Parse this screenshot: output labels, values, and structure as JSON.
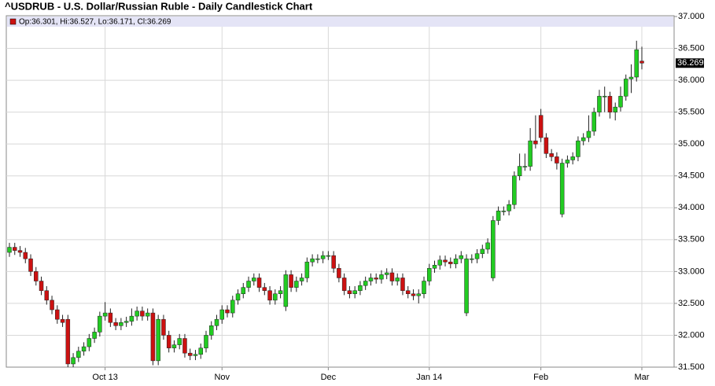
{
  "chart_data": {
    "type": "candlestick",
    "title": "^USDRUB - U.S. Dollar/Russian Ruble - Daily Candlestick Chart",
    "legend": "Op:36.301, Hi:36.527, Lo:36.171, Cl:36.269",
    "up_color": "#22cc22",
    "down_color": "#cc1111",
    "grid": true,
    "ylim": [
      31.5,
      37.0
    ],
    "yticks": [
      {
        "value": 31.5,
        "label": "31.500"
      },
      {
        "value": 32.0,
        "label": "32.000"
      },
      {
        "value": 32.5,
        "label": "32.500"
      },
      {
        "value": 33.0,
        "label": "33.000"
      },
      {
        "value": 33.5,
        "label": "33.500"
      },
      {
        "value": 34.0,
        "label": "34.000"
      },
      {
        "value": 34.5,
        "label": "34.500"
      },
      {
        "value": 35.0,
        "label": "35.000"
      },
      {
        "value": 35.5,
        "label": "35.500"
      },
      {
        "value": 36.0,
        "label": "36.000"
      },
      {
        "value": 36.5,
        "label": "36.500"
      },
      {
        "value": 37.0,
        "label": "37.000"
      }
    ],
    "categories": [
      null,
      null,
      null,
      null,
      null,
      null,
      null,
      null,
      null,
      null,
      null,
      null,
      null,
      null,
      null,
      null,
      null,
      null,
      "Oct 13",
      null,
      null,
      null,
      null,
      null,
      null,
      null,
      null,
      null,
      null,
      null,
      null,
      null,
      null,
      null,
      null,
      null,
      null,
      null,
      null,
      null,
      "Nov",
      null,
      null,
      null,
      null,
      null,
      null,
      null,
      null,
      null,
      null,
      null,
      null,
      null,
      null,
      null,
      null,
      null,
      null,
      null,
      "Dec",
      null,
      null,
      null,
      null,
      null,
      null,
      null,
      null,
      null,
      null,
      null,
      null,
      null,
      null,
      null,
      null,
      null,
      null,
      "Jan 14",
      null,
      null,
      null,
      null,
      null,
      null,
      null,
      null,
      null,
      null,
      null,
      null,
      null,
      null,
      null,
      null,
      null,
      null,
      null,
      null,
      "Feb",
      null,
      null,
      null,
      null,
      null,
      null,
      null,
      null,
      null,
      null,
      null,
      null,
      null,
      null,
      null,
      null,
      null,
      null,
      "Mar"
    ],
    "open": [
      33.3,
      33.38,
      33.33,
      33.3,
      33.2,
      33.0,
      32.85,
      32.7,
      32.55,
      32.4,
      32.25,
      32.25,
      31.55,
      31.65,
      31.75,
      31.82,
      31.95,
      32.05,
      32.3,
      32.35,
      32.2,
      32.15,
      32.2,
      32.22,
      32.3,
      32.38,
      32.3,
      32.35,
      31.6,
      32.25,
      32.0,
      31.8,
      31.85,
      31.95,
      31.72,
      31.68,
      31.7,
      31.8,
      32.0,
      32.15,
      32.25,
      32.4,
      32.35,
      32.55,
      32.65,
      32.75,
      32.85,
      32.9,
      32.75,
      32.7,
      32.55,
      32.65,
      32.45,
      32.95,
      32.75,
      32.85,
      32.9,
      33.15,
      33.2,
      33.2,
      33.25,
      33.25,
      33.05,
      32.9,
      32.7,
      32.65,
      32.7,
      32.78,
      32.85,
      32.9,
      32.88,
      32.95,
      32.98,
      32.85,
      32.9,
      32.7,
      32.65,
      32.62,
      32.65,
      32.85,
      33.05,
      33.1,
      33.18,
      33.15,
      33.12,
      33.2,
      32.35,
      33.2,
      33.2,
      33.28,
      33.35,
      32.9,
      33.8,
      33.95,
      33.95,
      34.05,
      34.5,
      34.65,
      34.65,
      35.05,
      35.45,
      35.1,
      34.85,
      34.8,
      33.9,
      34.7,
      34.75,
      34.8,
      35.05,
      35.1,
      35.2,
      35.5,
      35.75,
      35.75,
      35.5,
      35.58,
      35.75,
      36.02,
      36.05,
      36.301
    ],
    "high": [
      33.45,
      33.45,
      33.4,
      33.37,
      33.27,
      33.07,
      32.92,
      32.77,
      32.62,
      32.47,
      32.32,
      32.32,
      31.72,
      31.82,
      31.89,
      32.02,
      32.12,
      32.37,
      32.52,
      32.42,
      32.27,
      32.27,
      32.29,
      32.42,
      32.45,
      32.45,
      32.42,
      32.42,
      32.32,
      32.32,
      32.07,
      31.92,
      32.02,
      32.02,
      31.79,
      31.77,
      31.87,
      32.07,
      32.22,
      32.32,
      32.47,
      32.47,
      32.62,
      32.72,
      32.82,
      32.92,
      32.97,
      32.97,
      32.82,
      32.77,
      32.72,
      32.77,
      33.02,
      33.02,
      32.92,
      32.97,
      33.22,
      33.27,
      33.27,
      33.32,
      33.32,
      33.32,
      33.12,
      32.97,
      32.77,
      32.77,
      32.85,
      32.92,
      32.97,
      32.97,
      33.02,
      33.05,
      33.05,
      32.97,
      32.97,
      32.77,
      32.72,
      32.72,
      32.92,
      33.12,
      33.17,
      33.25,
      33.25,
      33.22,
      33.27,
      33.32,
      33.27,
      33.27,
      33.35,
      33.42,
      33.52,
      33.87,
      34.02,
      34.02,
      34.12,
      34.57,
      34.85,
      34.85,
      35.25,
      35.45,
      35.55,
      35.17,
      34.92,
      34.87,
      34.77,
      34.82,
      34.87,
      35.12,
      35.17,
      35.45,
      35.57,
      35.85,
      35.9,
      35.82,
      35.65,
      35.9,
      36.09,
      36.25,
      36.62,
      36.527
    ],
    "low": [
      33.23,
      33.26,
      33.23,
      33.13,
      32.93,
      32.78,
      32.63,
      32.48,
      32.33,
      32.18,
      32.13,
      31.5,
      31.5,
      31.58,
      31.68,
      31.75,
      31.88,
      31.98,
      32.23,
      32.13,
      32.08,
      32.08,
      32.13,
      32.15,
      32.23,
      32.23,
      32.23,
      31.53,
      31.53,
      31.93,
      31.73,
      31.73,
      31.78,
      31.65,
      31.61,
      31.61,
      31.63,
      31.73,
      31.93,
      32.08,
      32.18,
      32.28,
      32.28,
      32.48,
      32.58,
      32.68,
      32.78,
      32.68,
      32.63,
      32.48,
      32.48,
      32.58,
      32.38,
      32.68,
      32.68,
      32.78,
      32.83,
      33.08,
      33.13,
      33.13,
      33.18,
      32.98,
      32.83,
      32.63,
      32.58,
      32.58,
      32.63,
      32.71,
      32.78,
      32.81,
      32.81,
      32.88,
      32.78,
      32.78,
      32.63,
      32.58,
      32.55,
      32.5,
      32.58,
      32.78,
      32.98,
      33.03,
      33.08,
      33.05,
      33.05,
      33.13,
      32.3,
      33.13,
      33.13,
      33.21,
      33.28,
      32.85,
      33.73,
      33.88,
      33.88,
      33.98,
      34.43,
      34.58,
      34.58,
      34.93,
      35.03,
      34.78,
      34.73,
      34.6,
      33.85,
      34.63,
      34.68,
      34.73,
      34.98,
      35.03,
      35.13,
      35.43,
      35.5,
      35.4,
      35.37,
      35.51,
      35.68,
      35.8,
      35.98,
      36.171
    ],
    "close": [
      33.38,
      33.33,
      33.3,
      33.2,
      33.0,
      32.85,
      32.7,
      32.55,
      32.4,
      32.25,
      32.2,
      31.55,
      31.65,
      31.75,
      31.82,
      31.95,
      32.05,
      32.3,
      32.35,
      32.2,
      32.15,
      32.2,
      32.22,
      32.3,
      32.38,
      32.3,
      32.35,
      31.6,
      32.25,
      32.0,
      31.8,
      31.85,
      31.95,
      31.72,
      31.68,
      31.7,
      31.8,
      32.0,
      32.15,
      32.25,
      32.4,
      32.35,
      32.55,
      32.65,
      32.75,
      32.85,
      32.9,
      32.75,
      32.7,
      32.55,
      32.65,
      32.7,
      32.95,
      32.75,
      32.85,
      32.9,
      33.15,
      33.2,
      33.2,
      33.25,
      33.25,
      33.05,
      32.9,
      32.7,
      32.65,
      32.7,
      32.78,
      32.85,
      32.9,
      32.88,
      32.95,
      32.98,
      32.85,
      32.9,
      32.7,
      32.65,
      32.62,
      32.65,
      32.85,
      33.05,
      33.1,
      33.18,
      33.15,
      33.12,
      33.2,
      33.25,
      33.2,
      33.2,
      33.28,
      33.35,
      33.45,
      33.8,
      33.95,
      33.95,
      34.05,
      34.5,
      34.65,
      34.65,
      35.05,
      35.0,
      35.1,
      34.85,
      34.8,
      34.7,
      34.7,
      34.75,
      34.8,
      35.05,
      35.1,
      35.2,
      35.5,
      35.75,
      35.75,
      35.5,
      35.58,
      35.75,
      36.02,
      36.05,
      36.48,
      36.269
    ]
  }
}
